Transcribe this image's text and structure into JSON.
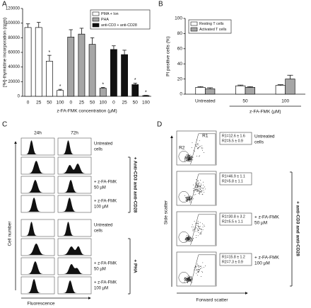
{
  "chart_data": [
    {
      "type": "bar",
      "panel": "A",
      "group_by": "series",
      "legend": "upper right",
      "y_label": "[³H]-thymidine incorporation (cpm)",
      "x_label": "z-FA-FMK concentration (µM)",
      "categories": [
        "0",
        "25",
        "50",
        "100"
      ],
      "ylim": [
        0,
        120000
      ],
      "yticks": [
        0,
        20000,
        40000,
        60000,
        80000,
        100000,
        120000
      ],
      "series": [
        {
          "name": "PMA + Ion",
          "color": "#ffffff",
          "values": [
            94000,
            94000,
            48000,
            8000
          ],
          "errors": [
            5000,
            7000,
            8000,
            1500
          ],
          "markers": [
            null,
            null,
            "*",
            "*"
          ]
        },
        {
          "name": "PHA",
          "color": "#a6a6a6",
          "values": [
            81000,
            85000,
            71000,
            11000
          ],
          "errors": [
            10000,
            8000,
            9000,
            1000
          ],
          "markers": [
            null,
            null,
            null,
            "*"
          ]
        },
        {
          "name": "anti-CD3 + anti-CD28",
          "color": "#111111",
          "values": [
            64000,
            57000,
            16000,
            1000
          ],
          "errors": [
            5000,
            6000,
            2000,
            300
          ],
          "markers": [
            null,
            null,
            "*",
            "*"
          ]
        }
      ]
    },
    {
      "type": "bar",
      "panel": "B",
      "group_by": "category",
      "legend": "upper left",
      "y_label": "PI positive cells (%)",
      "x_label": "z-FA-FMK (µM)",
      "categories": [
        "Untreated",
        "50",
        "100"
      ],
      "ylim": [
        0,
        100
      ],
      "yticks": [
        0,
        20,
        40,
        60,
        80,
        100
      ],
      "series": [
        {
          "name": "Resting T cells",
          "color": "#ffffff",
          "values": [
            9,
            11,
            11.5
          ],
          "errors": [
            1,
            1,
            1
          ]
        },
        {
          "name": "Activated T cells",
          "color": "#a6a6a6",
          "values": [
            7,
            9,
            20
          ],
          "errors": [
            1.5,
            1,
            5
          ]
        }
      ]
    }
  ],
  "panel_c": {
    "panel": "C",
    "columns": [
      "24h",
      "72h"
    ],
    "rows": [
      [
        "Untreated",
        "cells"
      ],
      null,
      [
        "+ z-FA-FMK",
        "50 µM"
      ],
      [
        "+ z-FA-FMK",
        "100 µM"
      ],
      [
        "Untreated",
        "cells"
      ],
      null,
      [
        "+ z-FA-FMK",
        "50 µM"
      ],
      [
        "+ z-FA-FMK",
        "100 µM"
      ]
    ],
    "brackets": [
      "+ Anti-CD3 and anti-CD28",
      "+ PHA"
    ],
    "y_label": "Cell number",
    "x_label": "Fluorescence"
  },
  "panel_d": {
    "panel": "D",
    "gates": [
      "R1",
      "R2"
    ],
    "rows": [
      {
        "stats": [
          "R1=12.6 ± 1.6",
          "R2=5.5 ± 0.9"
        ],
        "label": [
          "Untreated",
          "cells"
        ]
      },
      {
        "stats": [
          "R1=46.9 ± 1.1",
          "R2=5.8 ± 1.1"
        ],
        "label": null
      },
      {
        "stats": [
          "R1=30.8 ± 3.2",
          "R2=5.5 ± 1.1"
        ],
        "label": [
          "+ z-FA-FMK",
          "50 µM"
        ]
      },
      {
        "stats": [
          "R1=15.8 ± 1.2",
          "R2=7.3 ± 0.9"
        ],
        "label": [
          "+ z-FA-FMK",
          "100 µM"
        ]
      }
    ],
    "bracket": "+ anti-CD3 and anti-CD28",
    "y_label": "Side scatter",
    "x_label": "Forward scatter"
  }
}
